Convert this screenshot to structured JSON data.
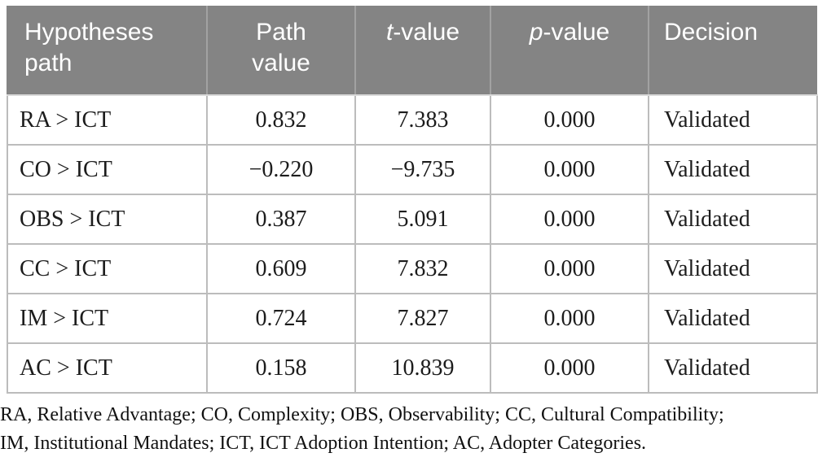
{
  "table": {
    "headers": {
      "hypotheses_path": "Hypotheses path",
      "path_value": "Path value",
      "t_value_italic": "t",
      "t_value_rest": "-value",
      "p_value_italic": "p",
      "p_value_rest": "-value",
      "decision": "Decision"
    },
    "rows": [
      {
        "path": "RA > ICT",
        "path_value": "0.832",
        "t_value": "7.383",
        "p_value": "0.000",
        "decision": "Validated"
      },
      {
        "path": "CO > ICT",
        "path_value": "−0.220",
        "t_value": "−9.735",
        "p_value": "0.000",
        "decision": "Validated"
      },
      {
        "path": "OBS > ICT",
        "path_value": "0.387",
        "t_value": "5.091",
        "p_value": "0.000",
        "decision": "Validated"
      },
      {
        "path": "CC > ICT",
        "path_value": "0.609",
        "t_value": "7.832",
        "p_value": "0.000",
        "decision": "Validated"
      },
      {
        "path": "IM > ICT",
        "path_value": "0.724",
        "t_value": "7.827",
        "p_value": "0.000",
        "decision": "Validated"
      },
      {
        "path": "AC > ICT",
        "path_value": "0.158",
        "t_value": "10.839",
        "p_value": "0.000",
        "decision": "Validated"
      }
    ]
  },
  "footnote": {
    "line1": "RA, Relative Advantage; CO, Complexity; OBS, Observability; CC, Cultural Compatibility;",
    "line2": "IM, Institutional Mandates; ICT, ICT Adoption Intention; AC, Adopter Categories."
  },
  "colors": {
    "header_bg": "#848484",
    "header_text": "#ffffff",
    "grid_border": "#bcbcbc",
    "body_text": "#1c1c1c"
  }
}
